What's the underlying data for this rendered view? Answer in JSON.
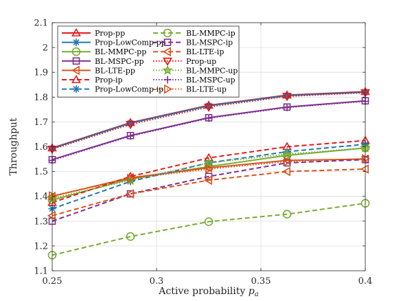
{
  "chart_data": {
    "type": "line",
    "xlabel": "Active probability ",
    "xlabel_symbol": "p",
    "xlabel_subscript": "a",
    "ylabel": "Throughput",
    "xlim": [
      0.25,
      0.4
    ],
    "ylim": [
      1.1,
      2.1
    ],
    "xticks": [
      0.25,
      0.3,
      0.35,
      0.4
    ],
    "xtick_labels": [
      "0.25",
      "0.3",
      "0.35",
      "0.4"
    ],
    "yticks": [
      1.1,
      1.2,
      1.3,
      1.4,
      1.5,
      1.6,
      1.7,
      1.8,
      1.9,
      2,
      2.1
    ],
    "ytick_labels": [
      "1.1",
      "1.2",
      "1.3",
      "1.4",
      "1.5",
      "1.6",
      "1.7",
      "1.8",
      "1.9",
      "2",
      "2.1"
    ],
    "grid": true,
    "legend_position": "top-left",
    "x": [
      0.25,
      0.2875,
      0.325,
      0.3625,
      0.4
    ],
    "series": [
      {
        "name": "Prop-pp",
        "color": "#e41a1c",
        "dash": "solid",
        "marker": "triangle-up",
        "values": [
          1.595,
          1.697,
          1.767,
          1.808,
          1.822
        ]
      },
      {
        "name": "Prop-LowComp-pp",
        "color": "#1f77b4",
        "dash": "solid",
        "marker": "asterisk",
        "values": [
          1.593,
          1.695,
          1.765,
          1.806,
          1.82
        ]
      },
      {
        "name": "BL-MMPC-pp",
        "color": "#77ac30",
        "dash": "solid",
        "marker": "circle",
        "values": [
          1.385,
          1.47,
          1.52,
          1.565,
          1.595
        ]
      },
      {
        "name": "BL-MSPC-pp",
        "color": "#7e2f8e",
        "dash": "solid",
        "marker": "square",
        "values": [
          1.548,
          1.645,
          1.717,
          1.76,
          1.785
        ]
      },
      {
        "name": "BL-LTE-pp",
        "color": "#d95319",
        "dash": "solid",
        "marker": "triangle-left",
        "values": [
          1.4,
          1.475,
          1.515,
          1.545,
          1.55
        ]
      },
      {
        "name": "Prop-ip",
        "color": "#e41a1c",
        "dash": "dashed",
        "marker": "triangle-up",
        "values": [
          1.375,
          1.48,
          1.555,
          1.6,
          1.625
        ]
      },
      {
        "name": "Prop-LowComp-ip",
        "color": "#1f77b4",
        "dash": "dashed",
        "marker": "asterisk",
        "values": [
          1.35,
          1.46,
          1.535,
          1.58,
          1.61
        ]
      },
      {
        "name": "BL-MMPC-ip",
        "color": "#77ac30",
        "dash": "dashed",
        "marker": "circle",
        "values": [
          1.163,
          1.238,
          1.298,
          1.328,
          1.372
        ]
      },
      {
        "name": "BL-MSPC-ip",
        "color": "#7e2f8e",
        "dash": "dashed",
        "marker": "square",
        "values": [
          1.3,
          1.41,
          1.48,
          1.535,
          1.548
        ]
      },
      {
        "name": "BL-LTE-ip",
        "color": "#d95319",
        "dash": "dashed",
        "marker": "triangle-left",
        "values": [
          1.322,
          1.41,
          1.465,
          1.5,
          1.51
        ]
      },
      {
        "name": "Prop-up",
        "color": "#ff0000",
        "dash": "dotted",
        "marker": "triangle-down",
        "values": [
          1.59,
          1.69,
          1.76,
          1.803,
          1.818
        ]
      },
      {
        "name": "BL-MMPC-up",
        "color": "#77ac30",
        "dash": "dotted",
        "marker": "pentagram",
        "values": [
          1.392,
          1.465,
          1.535,
          1.57,
          1.595
        ]
      },
      {
        "name": "BL-MSPC-up",
        "color": "#7e2f8e",
        "dash": "dotted",
        "marker": "plus",
        "values": [
          1.545,
          1.643,
          1.715,
          1.758,
          1.783
        ]
      },
      {
        "name": "BL-LTE-up",
        "color": "#d95319",
        "dash": "dotted",
        "marker": "triangle-right",
        "values": [
          1.402,
          1.472,
          1.51,
          1.54,
          1.552
        ]
      }
    ]
  }
}
